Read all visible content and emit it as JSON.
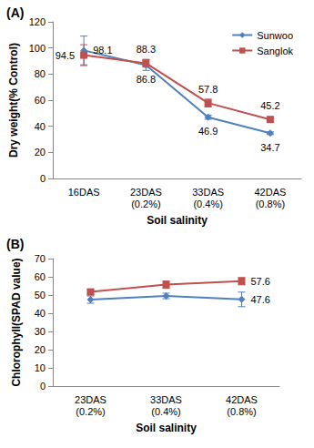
{
  "chart_data": [
    {
      "type": "line",
      "title": "(A)",
      "xlabel": "Soil salinity",
      "ylabel": "Dry weight(% Control)",
      "categories": [
        "16DAS",
        "23DAS\n(0.2%)",
        "33DAS\n(0.4%)",
        "42DAS\n(0.8%)"
      ],
      "series": [
        {
          "name": "Sunwoo",
          "color": "#4f81bd",
          "marker": "diamond",
          "values": [
            98.1,
            86.8,
            46.9,
            34.7
          ],
          "errors": [
            11,
            4,
            1.5,
            1
          ]
        },
        {
          "name": "Sanglok",
          "color": "#c0504d",
          "marker": "square",
          "values": [
            94.5,
            88.3,
            57.8,
            45.2
          ],
          "errors": [
            8,
            3,
            3,
            1.5
          ]
        }
      ],
      "ylim": [
        0,
        120
      ],
      "yticks": [
        0,
        20,
        40,
        60,
        80,
        100,
        120
      ],
      "grid": false,
      "legend": "upper right",
      "data_labels": true
    },
    {
      "type": "line",
      "title": "(B)",
      "xlabel": "Soil salinity",
      "ylabel": "Chlorophyll(SPAD value)",
      "categories": [
        "23DAS\n(0.2%)",
        "33DAS\n(0.4%)",
        "42DAS\n(0.8%)"
      ],
      "series": [
        {
          "name": "Sunwoo",
          "color": "#4f81bd",
          "marker": "diamond",
          "values": [
            47.5,
            49.5,
            47.6
          ],
          "errors": [
            2,
            1.5,
            4
          ],
          "value_labels": [
            null,
            null,
            "47.6"
          ]
        },
        {
          "name": "Sanglok",
          "color": "#c0504d",
          "marker": "square",
          "values": [
            51.7,
            55.7,
            57.6
          ],
          "errors": [
            1.5,
            2,
            2
          ],
          "value_labels": [
            null,
            null,
            "57.6"
          ]
        }
      ],
      "ylim": [
        0,
        70
      ],
      "yticks": [
        0,
        10,
        20,
        30,
        40,
        50,
        60,
        70
      ],
      "grid": false,
      "data_labels": true
    }
  ]
}
